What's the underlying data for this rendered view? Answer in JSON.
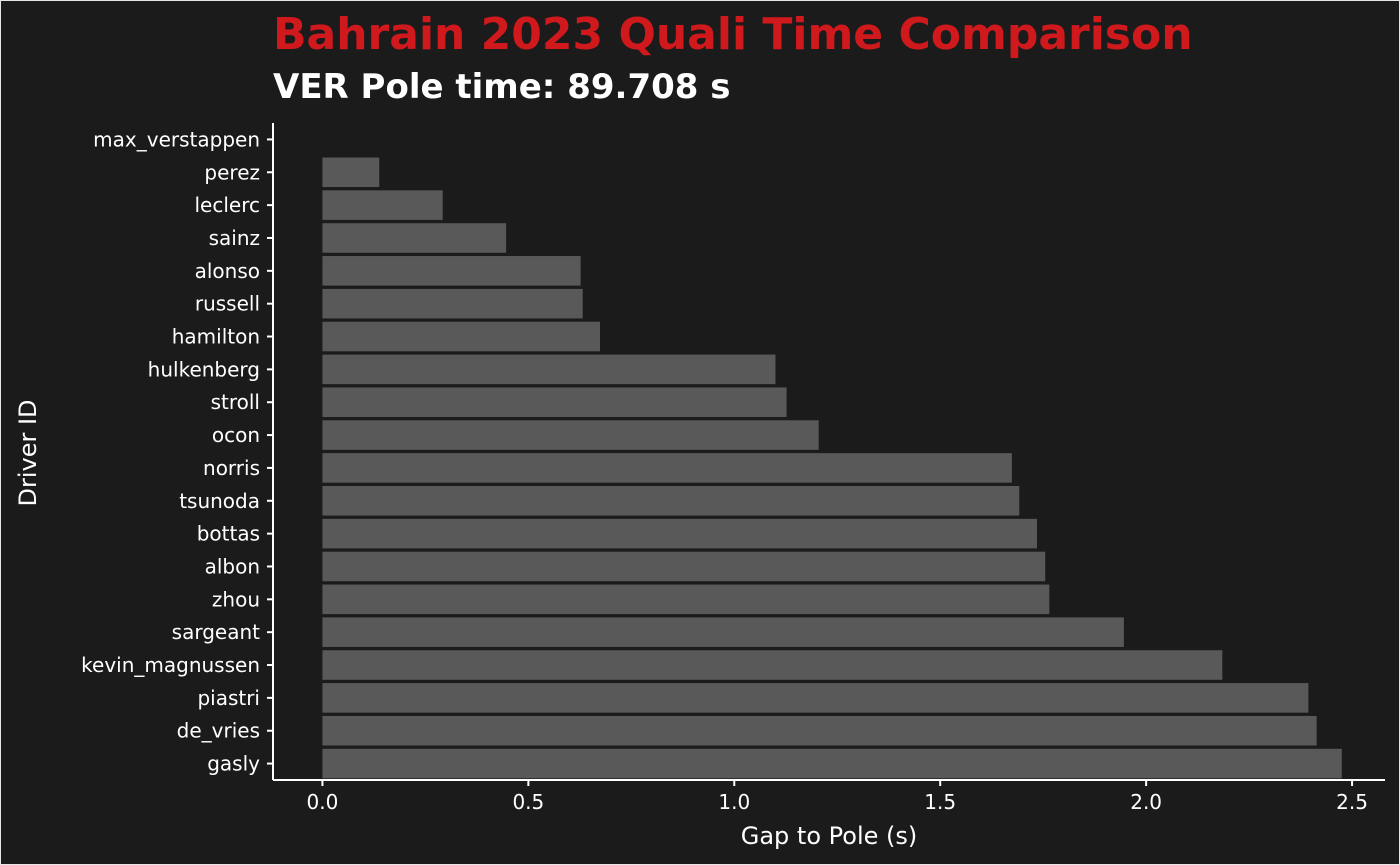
{
  "chart_data": {
    "type": "bar",
    "orientation": "horizontal",
    "title": "Bahrain 2023 Quali Time Comparison",
    "subtitle": "VER Pole time: 89.708 s",
    "xlabel": "Gap to Pole (s)",
    "ylabel": "Driver ID",
    "xlim": [
      -0.12,
      2.58
    ],
    "xticks": [
      "0.0",
      "0.5",
      "1.0",
      "1.5",
      "2.0",
      "2.5"
    ],
    "grid": false,
    "legend": "none",
    "categories": [
      "max_verstappen",
      "perez",
      "leclerc",
      "sainz",
      "alonso",
      "russell",
      "hamilton",
      "hulkenberg",
      "stroll",
      "ocon",
      "norris",
      "tsunoda",
      "bottas",
      "albon",
      "zhou",
      "sargeant",
      "kevin_magnussen",
      "piastri",
      "de_vries",
      "gasly"
    ],
    "values": [
      0.0,
      0.138,
      0.292,
      0.446,
      0.627,
      0.632,
      0.674,
      1.1,
      1.127,
      1.205,
      1.674,
      1.692,
      1.735,
      1.755,
      1.765,
      1.946,
      2.185,
      2.394,
      2.414,
      2.475
    ]
  },
  "colors": {
    "background": "#1b1b1b",
    "title": "#d0191d",
    "text": "#ffffff",
    "bar": "#595959",
    "axis": "#ffffff"
  }
}
